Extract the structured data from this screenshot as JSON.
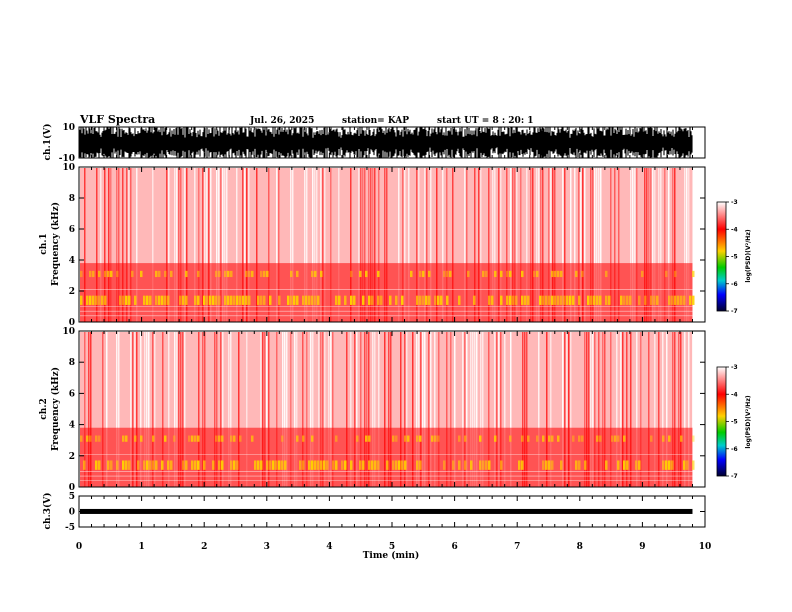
{
  "header": {
    "title": "VLF Spectra",
    "date": "Jul. 26, 2025",
    "station": "station= KAP",
    "start": "start UT = 8 : 20: 1"
  },
  "colors": {
    "spectrogram_background": "#ffffff",
    "spectrogram_main": "#ff0000",
    "spectrogram_band": "#ffd000",
    "waveform": "#000000"
  },
  "chart_data": [
    {
      "type": "line",
      "name": "ch1-waveform",
      "ylabel": "ch.1(V)",
      "ylim": [
        -10,
        10
      ],
      "yticks": [
        "10",
        "-10"
      ],
      "xlim": [
        0,
        10
      ]
    },
    {
      "type": "heatmap",
      "name": "ch1-spectrogram",
      "ylabel": "ch.1\nFrequency (kHz)",
      "ylabel_lines": [
        "ch.1",
        "Frequency (kHz)"
      ],
      "ylim": [
        0,
        10
      ],
      "yticks": [
        "0",
        "2",
        "4",
        "6",
        "8",
        "10"
      ],
      "xlim": [
        0,
        10
      ],
      "data_end_min": 9.8,
      "colorbar": {
        "label": "log(PSD)(V²/Hz)",
        "range": [
          -7,
          -3
        ],
        "ticks": [
          "-3",
          "-4",
          "-5",
          "-6",
          "-7"
        ]
      }
    },
    {
      "type": "heatmap",
      "name": "ch2-spectrogram",
      "ylabel": "ch.2\nFrequency (kHz)",
      "ylabel_lines": [
        "ch.2",
        "Frequency (kHz)"
      ],
      "ylim": [
        0,
        10
      ],
      "yticks": [
        "0",
        "2",
        "4",
        "6",
        "8",
        "10"
      ],
      "xlim": [
        0,
        10
      ],
      "data_end_min": 9.8,
      "colorbar": {
        "label": "log(PSD)(V²/Hz)",
        "range": [
          -7,
          -3
        ],
        "ticks": [
          "-3",
          "-4",
          "-5",
          "-6",
          "-7"
        ]
      }
    },
    {
      "type": "line",
      "name": "ch3-waveform",
      "ylabel": "ch.3(V)",
      "ylim": [
        -5,
        5
      ],
      "yticks": [
        "5",
        "0",
        "-5"
      ],
      "xlim": [
        0,
        10
      ],
      "xlabel": "Time (min)",
      "xticks": [
        "0",
        "1",
        "2",
        "3",
        "4",
        "5",
        "6",
        "7",
        "8",
        "9",
        "10"
      ]
    }
  ]
}
